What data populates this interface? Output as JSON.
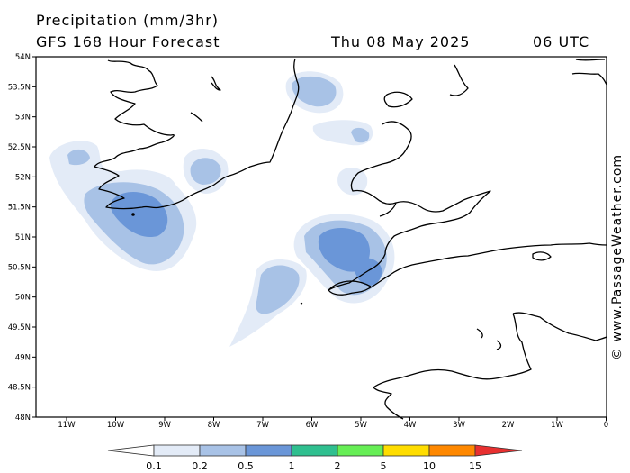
{
  "header": {
    "title": "Precipitation (mm/3hr)",
    "subtitle": "GFS 168 Hour Forecast",
    "valid_date": "Thu 08 May 2025",
    "valid_time": "06 UTC"
  },
  "credit": "© www.PassageWeather.com",
  "map": {
    "lat_labels": [
      "54N",
      "53.5N",
      "53N",
      "52.5N",
      "52N",
      "51.5N",
      "51N",
      "50.5N",
      "50N",
      "49.5N",
      "49N",
      "48.5N",
      "48N"
    ],
    "lon_labels": [
      "11W",
      "10W",
      "9W",
      "8W",
      "7W",
      "6W",
      "5W",
      "4W",
      "3W",
      "2W",
      "1W",
      "0"
    ],
    "colors": {
      "land_outline": "#000000",
      "frame": "#000000"
    }
  },
  "legend": {
    "labels": [
      "0.1",
      "0.2",
      "0.5",
      "1",
      "2",
      "5",
      "10",
      "15"
    ],
    "colors": [
      "#ffffff",
      "#e3ebf7",
      "#a8c2e6",
      "#6a96d8",
      "#2fbf8f",
      "#66ee55",
      "#ffdd00",
      "#ff8800",
      "#e83030"
    ]
  }
}
